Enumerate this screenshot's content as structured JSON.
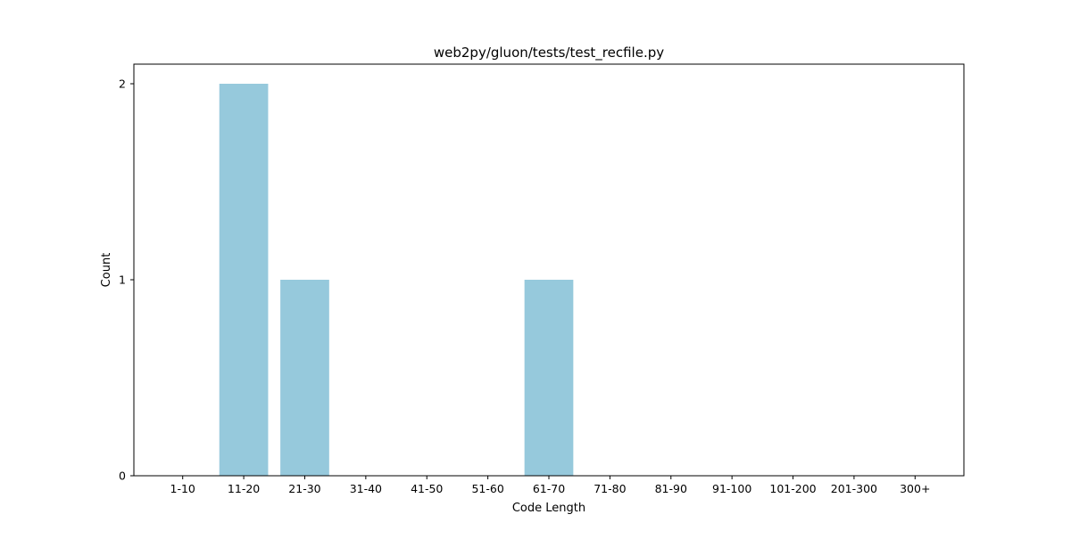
{
  "chart_data": {
    "type": "bar",
    "title": "web2py/gluon/tests/test_recfile.py",
    "xlabel": "Code Length",
    "ylabel": "Count",
    "categories": [
      "1-10",
      "11-20",
      "21-30",
      "31-40",
      "41-50",
      "51-60",
      "61-70",
      "71-80",
      "81-90",
      "91-100",
      "101-200",
      "201-300",
      "300+"
    ],
    "values": [
      0,
      2,
      1,
      0,
      0,
      0,
      1,
      0,
      0,
      0,
      0,
      0,
      0
    ],
    "ylim": [
      0,
      2.1
    ],
    "yticks": [
      0,
      1,
      2
    ],
    "grid": false,
    "legend": false,
    "bar_color": "#96c9dc"
  }
}
